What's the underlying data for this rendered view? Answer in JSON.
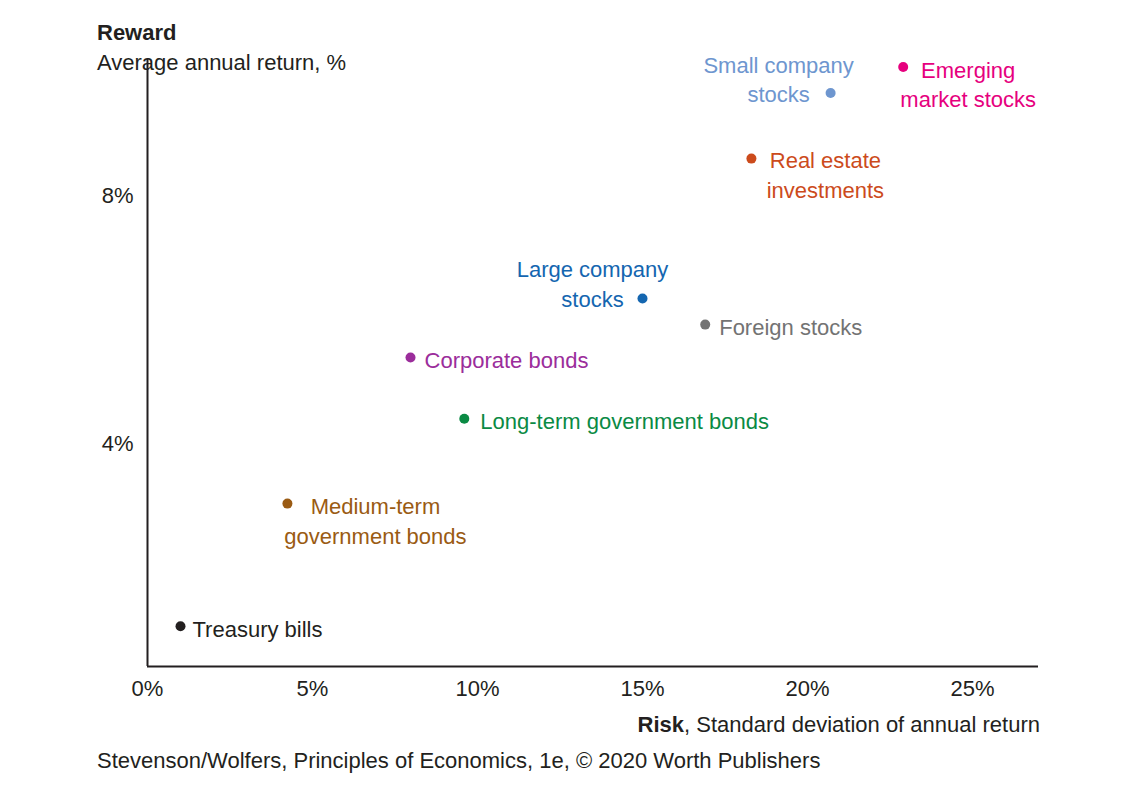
{
  "chart_data": {
    "type": "scatter",
    "ylabel": {
      "title": "Reward",
      "subtitle": "Average annual return, %"
    },
    "xlabel": {
      "title": "Risk",
      "subtitle": ", Standard deviation of annual return"
    },
    "source": "Stevenson/Wolfers, Principles of Economics, 1e, © 2020 Worth Publishers",
    "xlim": [
      0,
      27
    ],
    "ylim": [
      0.4,
      10.2
    ],
    "xticks": [
      {
        "value": 0,
        "label": "0%"
      },
      {
        "value": 5,
        "label": "5%"
      },
      {
        "value": 10,
        "label": "10%"
      },
      {
        "value": 15,
        "label": "15%"
      },
      {
        "value": 20,
        "label": "20%"
      },
      {
        "value": 25,
        "label": "25%"
      }
    ],
    "yticks": [
      {
        "value": 4,
        "label": "4%"
      },
      {
        "value": 8,
        "label": "8%"
      }
    ],
    "grid": false,
    "data_labels": true,
    "points": [
      {
        "name": "Treasury bills",
        "x": 1.0,
        "y": 1.05,
        "color": "#231f20"
      },
      {
        "name": "Medium-term\ngovernment bonds",
        "x": 4.24,
        "y": 3.03,
        "color": "#9a5b13"
      },
      {
        "name": "Corporate bonds",
        "x": 7.97,
        "y": 5.39,
        "color": "#9b2d9b"
      },
      {
        "name": "Long-term government bonds",
        "x": 9.6,
        "y": 4.4,
        "color": "#0a8a44"
      },
      {
        "name": "Large company\nstocks",
        "x": 15.0,
        "y": 6.34,
        "color": "#1466b0"
      },
      {
        "name": "Foreign stocks",
        "x": 16.9,
        "y": 5.92,
        "color": "#737373"
      },
      {
        "name": "Real estate\ninvestments",
        "x": 18.3,
        "y": 8.6,
        "color": "#cc4b1c"
      },
      {
        "name": "Small company\nstocks",
        "x": 20.7,
        "y": 9.66,
        "color": "#6e96cf"
      },
      {
        "name": "Emerging\nmarket stocks",
        "x": 22.9,
        "y": 10.08,
        "color": "#e6007e"
      }
    ]
  }
}
